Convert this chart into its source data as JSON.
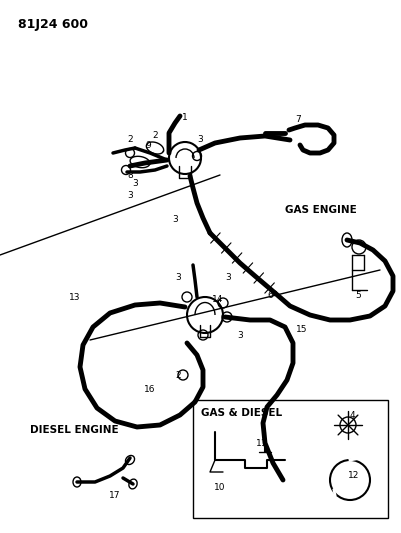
{
  "background_color": "#ffffff",
  "line_color": "#000000",
  "title": "81J24 600",
  "gas_engine_label": "GAS ENGINE",
  "diesel_engine_label": "DIESEL ENGINE",
  "gas_diesel_label": "GAS & DIESEL"
}
